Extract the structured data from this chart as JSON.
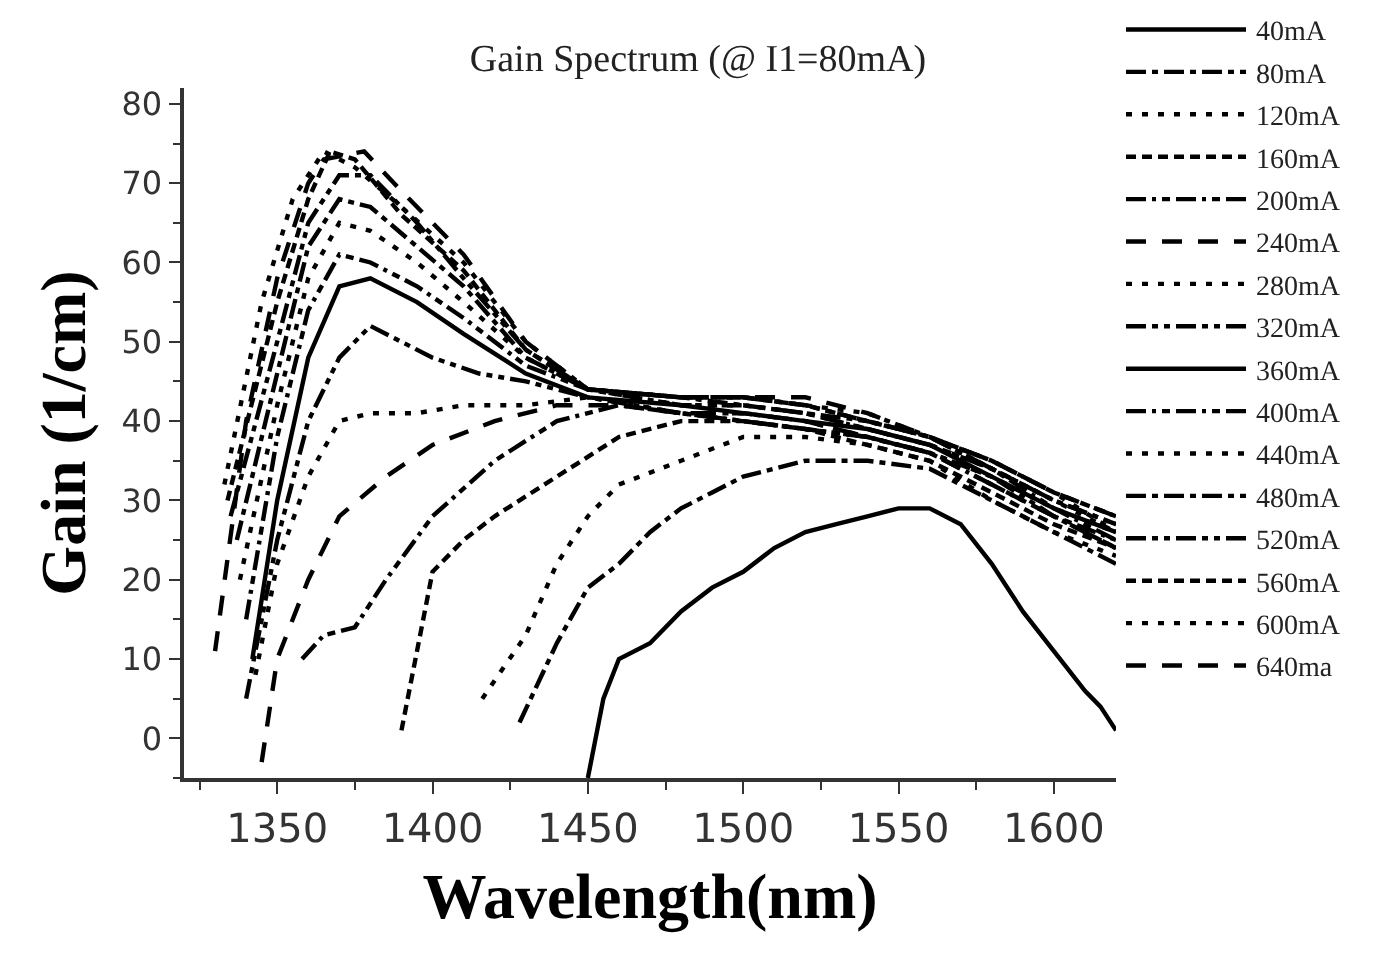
{
  "chart_data": {
    "type": "line",
    "title": "Gain Spectrum (@ I1=80mA)",
    "xlabel": "Wavelength(nm)",
    "ylabel": "Gain (1/cm)",
    "xlim": [
      1320,
      1620
    ],
    "xticks": [
      1350,
      1400,
      1450,
      1500,
      1550,
      1600
    ],
    "ylim": [
      -5,
      82
    ],
    "yticks": [
      0,
      10,
      20,
      30,
      40,
      50,
      60,
      70,
      80
    ],
    "legend": "right",
    "marker": "none",
    "series": [
      {
        "name": "40mA",
        "color": "#000000",
        "line_style": "solid",
        "x": [
          1450,
          1455,
          1460,
          1470,
          1480,
          1490,
          1500,
          1510,
          1520,
          1530,
          1540,
          1550,
          1560,
          1570,
          1580,
          1590,
          1600,
          1610,
          1615,
          1620
        ],
        "values": [
          -5,
          5,
          10,
          12,
          16,
          19,
          21,
          24,
          26,
          27,
          28,
          29,
          29,
          27,
          22,
          16,
          11,
          6,
          4,
          1
        ]
      },
      {
        "name": "80mA",
        "color": "#000000",
        "line_style": "dashed",
        "x": [
          1428,
          1440,
          1450,
          1460,
          1470,
          1480,
          1490,
          1500,
          1520,
          1540,
          1560,
          1580,
          1600,
          1610,
          1620
        ],
        "values": [
          2,
          12,
          19,
          22,
          26,
          29,
          31,
          33,
          35,
          35,
          34,
          30,
          26,
          24,
          22
        ]
      },
      {
        "name": "120mA",
        "color": "#000000",
        "line_style": "dotted",
        "x": [
          1416,
          1430,
          1440,
          1450,
          1460,
          1480,
          1500,
          1520,
          1540,
          1560,
          1580,
          1600,
          1620
        ],
        "values": [
          5,
          13,
          22,
          28,
          32,
          35,
          38,
          38,
          37,
          35,
          30,
          26,
          23
        ]
      },
      {
        "name": "160mA",
        "color": "#000000",
        "line_style": "dashed",
        "x": [
          1390,
          1400,
          1410,
          1420,
          1440,
          1460,
          1480,
          1500,
          1520,
          1540,
          1560,
          1580,
          1600,
          1620
        ],
        "values": [
          1,
          21,
          25,
          28,
          33,
          38,
          40,
          40,
          39,
          37,
          35,
          31,
          27,
          24
        ]
      },
      {
        "name": "200mA",
        "color": "#000000",
        "line_style": "dashed",
        "x": [
          1358,
          1365,
          1375,
          1385,
          1400,
          1420,
          1440,
          1460,
          1480,
          1500,
          1520,
          1540,
          1560,
          1580,
          1600,
          1620
        ],
        "values": [
          10,
          13,
          14,
          20,
          28,
          35,
          40,
          42,
          41,
          40,
          39,
          38,
          36,
          32,
          28,
          25
        ]
      },
      {
        "name": "240mA",
        "color": "#000000",
        "line_style": "dashed",
        "x": [
          1345,
          1350,
          1360,
          1370,
          1385,
          1400,
          1420,
          1440,
          1460,
          1480,
          1500,
          1520,
          1540,
          1560,
          1580,
          1600,
          1620
        ],
        "values": [
          -3,
          10,
          20,
          28,
          33,
          37,
          40,
          42,
          42,
          41,
          41,
          40,
          38,
          36,
          32,
          28,
          24
        ]
      },
      {
        "name": "280mA",
        "color": "#000000",
        "line_style": "dotted",
        "x": [
          1343,
          1350,
          1360,
          1370,
          1380,
          1395,
          1410,
          1430,
          1450,
          1480,
          1500,
          1520,
          1540,
          1560,
          1580,
          1600,
          1620
        ],
        "values": [
          8,
          22,
          33,
          40,
          41,
          41,
          42,
          42,
          43,
          41,
          41,
          40,
          38,
          36,
          33,
          29,
          26
        ]
      },
      {
        "name": "320mA",
        "color": "#000000",
        "line_style": "dashed",
        "x": [
          1340,
          1350,
          1360,
          1370,
          1380,
          1390,
          1400,
          1415,
          1430,
          1450,
          1480,
          1500,
          1520,
          1540,
          1560,
          1580,
          1600,
          1620
        ],
        "values": [
          5,
          25,
          40,
          48,
          52,
          50,
          48,
          46,
          45,
          43,
          41,
          40,
          39,
          38,
          36,
          33,
          28,
          24
        ]
      },
      {
        "name": "360mA",
        "color": "#000000",
        "line_style": "solid",
        "x": [
          1342,
          1350,
          1360,
          1370,
          1380,
          1395,
          1410,
          1430,
          1450,
          1480,
          1500,
          1520,
          1540,
          1560,
          1580,
          1600,
          1620
        ],
        "values": [
          10,
          30,
          48,
          57,
          58,
          55,
          51,
          46,
          43,
          42,
          41,
          40,
          39,
          37,
          33,
          29,
          26
        ]
      },
      {
        "name": "400mA",
        "color": "#000000",
        "line_style": "dashed",
        "x": [
          1340,
          1350,
          1360,
          1370,
          1380,
          1395,
          1410,
          1430,
          1450,
          1480,
          1500,
          1520,
          1540,
          1560,
          1580,
          1600,
          1620
        ],
        "values": [
          15,
          38,
          54,
          61,
          60,
          57,
          53,
          47,
          44,
          42,
          42,
          41,
          39,
          37,
          34,
          29,
          25
        ]
      },
      {
        "name": "440mA",
        "color": "#000000",
        "line_style": "dotted",
        "x": [
          1338,
          1350,
          1360,
          1370,
          1380,
          1395,
          1410,
          1430,
          1450,
          1480,
          1500,
          1520,
          1540,
          1560,
          1580,
          1600,
          1620
        ],
        "values": [
          20,
          42,
          58,
          65,
          64,
          60,
          55,
          48,
          44,
          42,
          42,
          41,
          39,
          37,
          34,
          30,
          26
        ]
      },
      {
        "name": "480mA",
        "color": "#000000",
        "line_style": "dashed",
        "x": [
          1337,
          1350,
          1360,
          1370,
          1380,
          1395,
          1410,
          1430,
          1450,
          1480,
          1500,
          1520,
          1540,
          1560,
          1580,
          1600,
          1620
        ],
        "values": [
          25,
          46,
          62,
          68,
          67,
          62,
          57,
          48,
          44,
          43,
          42,
          41,
          40,
          38,
          34,
          30,
          27
        ]
      },
      {
        "name": "520mA",
        "color": "#000000",
        "line_style": "dashed",
        "x": [
          1335,
          1350,
          1360,
          1370,
          1380,
          1395,
          1410,
          1430,
          1450,
          1480,
          1500,
          1520,
          1540,
          1560,
          1580,
          1600,
          1620
        ],
        "values": [
          28,
          50,
          65,
          71,
          71,
          65,
          58,
          49,
          44,
          43,
          43,
          42,
          40,
          38,
          34,
          30,
          27
        ]
      },
      {
        "name": "560mA",
        "color": "#000000",
        "line_style": "dashed",
        "x": [
          1334,
          1350,
          1360,
          1367,
          1375,
          1390,
          1410,
          1430,
          1450,
          1480,
          1500,
          1520,
          1540,
          1560,
          1580,
          1600,
          1620
        ],
        "values": [
          30,
          55,
          68,
          74,
          73,
          66,
          59,
          49,
          44,
          43,
          43,
          42,
          40,
          38,
          35,
          31,
          28
        ]
      },
      {
        "name": "600mA",
        "color": "#000000",
        "line_style": "dotted",
        "x": [
          1333,
          1345,
          1355,
          1365,
          1375,
          1390,
          1410,
          1430,
          1450,
          1480,
          1500,
          1520,
          1540,
          1560,
          1580,
          1600,
          1620
        ],
        "values": [
          32,
          55,
          68,
          74,
          72,
          67,
          60,
          50,
          44,
          43,
          43,
          42,
          41,
          38,
          35,
          31,
          26
        ]
      },
      {
        "name": "640ma",
        "color": "#000000",
        "line_style": "dashed",
        "x": [
          1330,
          1340,
          1350,
          1360,
          1365,
          1378,
          1390,
          1410,
          1430,
          1450,
          1480,
          1500,
          1520,
          1540,
          1560,
          1580,
          1600,
          1620
        ],
        "values": [
          11,
          40,
          58,
          70,
          73,
          74,
          69,
          61,
          50,
          44,
          43,
          43,
          43,
          41,
          38,
          35,
          31,
          28
        ]
      }
    ]
  }
}
